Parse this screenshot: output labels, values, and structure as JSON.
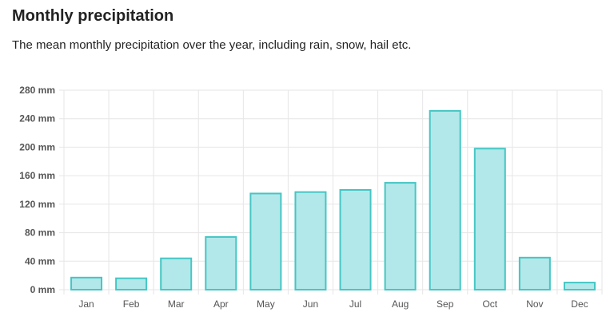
{
  "header": {
    "title": "Monthly precipitation",
    "subtitle": "The mean monthly precipitation over the year, including rain, snow, hail etc."
  },
  "chart_data": {
    "type": "bar",
    "categories": [
      "Jan",
      "Feb",
      "Mar",
      "Apr",
      "May",
      "Jun",
      "Jul",
      "Aug",
      "Sep",
      "Oct",
      "Nov",
      "Dec"
    ],
    "values": [
      17,
      16,
      44,
      74,
      135,
      137,
      140,
      150,
      251,
      198,
      45,
      10
    ],
    "ylim": [
      0,
      280
    ],
    "yticks": [
      0,
      40,
      80,
      120,
      160,
      200,
      240,
      280
    ],
    "ytick_suffix": " mm",
    "grid": true,
    "bar_fill": "#b2e8ea",
    "bar_stroke": "#45c6c4",
    "grid_color": "#e6e6e6"
  }
}
